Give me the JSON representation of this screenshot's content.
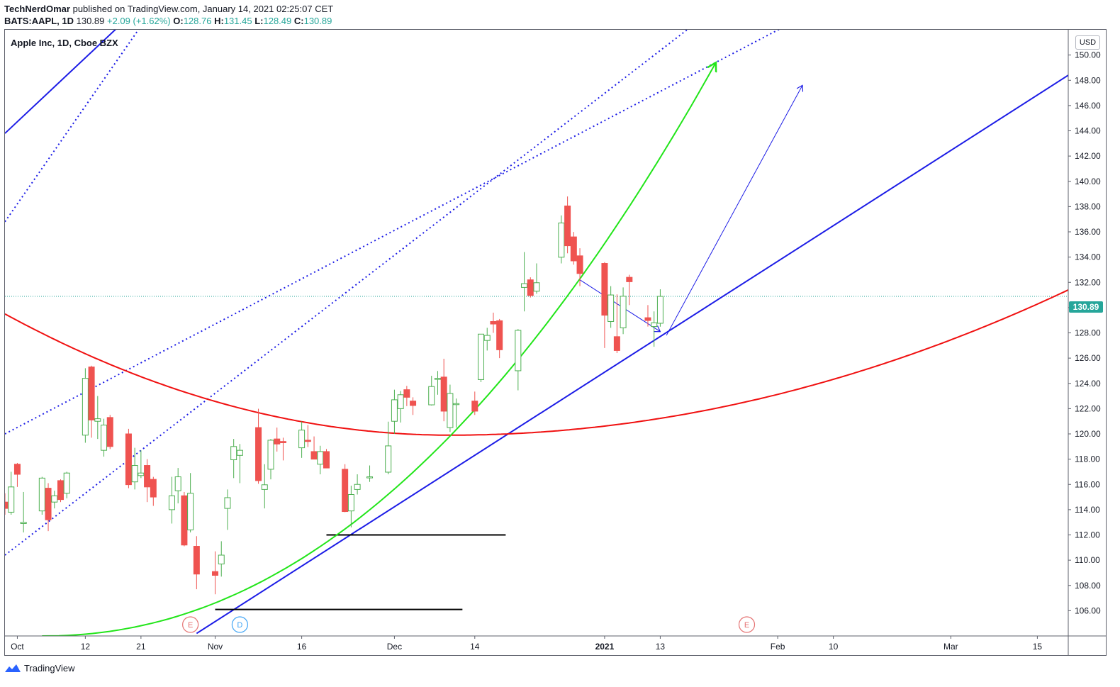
{
  "header": {
    "author": "TechNerdOmar",
    "published_text": "published on TradingView.com, January 14, 2021 02:25:07 CET",
    "symbol": "BATS:AAPL, 1D",
    "last": "130.89",
    "change": "+2.09 (+1.62%)",
    "o_label": "O:",
    "o_value": "128.76",
    "h_label": "H:",
    "h_value": "131.45",
    "l_label": "L:",
    "l_value": "128.49",
    "c_label": "C:",
    "c_value": "130.89"
  },
  "legend_title": "Apple Inc, 1D, Cboe BZX",
  "currency_button": "USD",
  "last_price_tag": "130.89",
  "footer": {
    "brand": "TradingView"
  },
  "colors": {
    "bull": "#26a69a",
    "bear": "#ef5350",
    "bull_fill": "#ffffff",
    "bull_outline": "#4caf50",
    "blue_line": "#1c1ce6",
    "red_curve": "#f01010",
    "green_curve": "#22e51a",
    "earnings": "#e57373",
    "dividend": "#42a5f5"
  },
  "chart_data": {
    "type": "candlestick",
    "title": "Apple Inc, 1D, Cboe BZX",
    "yaxis": {
      "ticks": [
        "106.00",
        "108.00",
        "110.00",
        "112.00",
        "114.00",
        "116.00",
        "118.00",
        "120.00",
        "122.00",
        "124.00",
        "126.00",
        "128.00",
        "130.00",
        "132.00",
        "134.00",
        "136.00",
        "138.00",
        "140.00",
        "142.00",
        "144.00",
        "146.00",
        "148.00",
        "150.00"
      ],
      "range": [
        104.0,
        152.0
      ]
    },
    "xaxis": {
      "ticks": [
        "Oct",
        "12",
        "21",
        "Nov",
        "16",
        "Dec",
        "14",
        "2021",
        "13",
        "Feb",
        "10",
        "Mar",
        "15"
      ],
      "bold_ticks": [
        "2021"
      ],
      "range": [
        "2020-09-29",
        "2021-03-20"
      ]
    },
    "candles": [
      {
        "t": "2020-09-29",
        "o": 114.6,
        "h": 115.3,
        "l": 113.6,
        "c": 114.1
      },
      {
        "t": "2020-09-30",
        "o": 113.8,
        "h": 117.0,
        "l": 113.6,
        "c": 115.8
      },
      {
        "t": "2020-10-01",
        "o": 117.6,
        "h": 117.7,
        "l": 115.8,
        "c": 116.8
      },
      {
        "t": "2020-10-02",
        "o": 112.9,
        "h": 115.4,
        "l": 112.2,
        "c": 113.0
      },
      {
        "t": "2020-10-05",
        "o": 113.9,
        "h": 116.6,
        "l": 113.6,
        "c": 116.5
      },
      {
        "t": "2020-10-06",
        "o": 115.7,
        "h": 116.1,
        "l": 112.3,
        "c": 113.2
      },
      {
        "t": "2020-10-07",
        "o": 114.6,
        "h": 115.5,
        "l": 114.1,
        "c": 115.1
      },
      {
        "t": "2020-10-08",
        "o": 116.3,
        "h": 116.4,
        "l": 114.6,
        "c": 114.8
      },
      {
        "t": "2020-10-09",
        "o": 115.3,
        "h": 117.0,
        "l": 114.9,
        "c": 116.9
      },
      {
        "t": "2020-10-12",
        "o": 119.9,
        "h": 125.2,
        "l": 119.3,
        "c": 124.4
      },
      {
        "t": "2020-10-13",
        "o": 125.3,
        "h": 125.4,
        "l": 119.7,
        "c": 121.1
      },
      {
        "t": "2020-10-14",
        "o": 121.0,
        "h": 123.0,
        "l": 119.6,
        "c": 121.2
      },
      {
        "t": "2020-10-15",
        "o": 118.7,
        "h": 121.2,
        "l": 118.2,
        "c": 120.7
      },
      {
        "t": "2020-10-16",
        "o": 121.3,
        "h": 121.5,
        "l": 118.8,
        "c": 119.0
      },
      {
        "t": "2020-10-19",
        "o": 120.0,
        "h": 120.4,
        "l": 115.7,
        "c": 115.98
      },
      {
        "t": "2020-10-20",
        "o": 116.2,
        "h": 118.9,
        "l": 115.6,
        "c": 117.5
      },
      {
        "t": "2020-10-21",
        "o": 116.7,
        "h": 118.7,
        "l": 116.5,
        "c": 116.9
      },
      {
        "t": "2020-10-22",
        "o": 117.5,
        "h": 118.0,
        "l": 114.6,
        "c": 115.8
      },
      {
        "t": "2020-10-23",
        "o": 116.4,
        "h": 116.6,
        "l": 114.3,
        "c": 115.0
      },
      {
        "t": "2020-10-26",
        "o": 114.0,
        "h": 116.6,
        "l": 112.9,
        "c": 115.1
      },
      {
        "t": "2020-10-27",
        "o": 115.5,
        "h": 117.3,
        "l": 114.5,
        "c": 116.6
      },
      {
        "t": "2020-10-28",
        "o": 115.1,
        "h": 115.4,
        "l": 111.1,
        "c": 111.2
      },
      {
        "t": "2020-10-29",
        "o": 112.4,
        "h": 116.9,
        "l": 112.2,
        "c": 115.3
      },
      {
        "t": "2020-10-30",
        "o": 111.1,
        "h": 111.9,
        "l": 107.7,
        "c": 108.9
      },
      {
        "t": "2020-11-02",
        "o": 109.1,
        "h": 110.7,
        "l": 107.3,
        "c": 108.8
      },
      {
        "t": "2020-11-03",
        "o": 109.7,
        "h": 111.5,
        "l": 108.7,
        "c": 110.4
      },
      {
        "t": "2020-11-04",
        "o": 114.1,
        "h": 115.6,
        "l": 112.4,
        "c": 114.95
      },
      {
        "t": "2020-11-05",
        "o": 117.95,
        "h": 119.6,
        "l": 116.5,
        "c": 119.0
      },
      {
        "t": "2020-11-06",
        "o": 118.3,
        "h": 119.2,
        "l": 116.1,
        "c": 118.7
      },
      {
        "t": "2020-11-09",
        "o": 120.5,
        "h": 121.99,
        "l": 116.05,
        "c": 116.3
      },
      {
        "t": "2020-11-10",
        "o": 115.6,
        "h": 117.6,
        "l": 114.1,
        "c": 115.97
      },
      {
        "t": "2020-11-11",
        "o": 117.2,
        "h": 119.6,
        "l": 116.4,
        "c": 119.5
      },
      {
        "t": "2020-11-12",
        "o": 119.6,
        "h": 120.5,
        "l": 118.6,
        "c": 119.2
      },
      {
        "t": "2020-11-13",
        "o": 119.4,
        "h": 119.7,
        "l": 117.9,
        "c": 119.3
      },
      {
        "t": "2020-11-16",
        "o": 118.9,
        "h": 120.99,
        "l": 118.1,
        "c": 120.3
      },
      {
        "t": "2020-11-17",
        "o": 119.5,
        "h": 120.7,
        "l": 118.96,
        "c": 119.4
      },
      {
        "t": "2020-11-18",
        "o": 118.6,
        "h": 119.8,
        "l": 118.0,
        "c": 118.0
      },
      {
        "t": "2020-11-19",
        "o": 117.6,
        "h": 119.06,
        "l": 116.8,
        "c": 118.6
      },
      {
        "t": "2020-11-20",
        "o": 118.6,
        "h": 118.8,
        "l": 117.3,
        "c": 117.3
      },
      {
        "t": "2020-11-23",
        "o": 117.2,
        "h": 117.6,
        "l": 113.8,
        "c": 113.85
      },
      {
        "t": "2020-11-24",
        "o": 113.9,
        "h": 115.9,
        "l": 112.6,
        "c": 115.2
      },
      {
        "t": "2020-11-25",
        "o": 115.6,
        "h": 116.8,
        "l": 115.2,
        "c": 116.0
      },
      {
        "t": "2020-11-27",
        "o": 116.6,
        "h": 117.5,
        "l": 116.2,
        "c": 116.6
      },
      {
        "t": "2020-11-30",
        "o": 116.97,
        "h": 120.97,
        "l": 116.8,
        "c": 119.05
      },
      {
        "t": "2020-12-01",
        "o": 121.0,
        "h": 123.5,
        "l": 120.0,
        "c": 122.7
      },
      {
        "t": "2020-12-02",
        "o": 122.0,
        "h": 123.4,
        "l": 120.9,
        "c": 123.1
      },
      {
        "t": "2020-12-03",
        "o": 123.5,
        "h": 123.8,
        "l": 122.2,
        "c": 122.9
      },
      {
        "t": "2020-12-04",
        "o": 122.6,
        "h": 122.9,
        "l": 121.5,
        "c": 122.25
      },
      {
        "t": "2020-12-07",
        "o": 122.3,
        "h": 124.6,
        "l": 122.25,
        "c": 123.75
      },
      {
        "t": "2020-12-08",
        "o": 124.4,
        "h": 124.98,
        "l": 123.1,
        "c": 124.4
      },
      {
        "t": "2020-12-09",
        "o": 124.5,
        "h": 125.95,
        "l": 121.0,
        "c": 121.8
      },
      {
        "t": "2020-12-10",
        "o": 120.5,
        "h": 123.9,
        "l": 120.15,
        "c": 123.2
      },
      {
        "t": "2020-12-11",
        "o": 122.4,
        "h": 122.8,
        "l": 120.5,
        "c": 122.4
      },
      {
        "t": "2020-12-14",
        "o": 122.6,
        "h": 123.35,
        "l": 121.5,
        "c": 121.8
      },
      {
        "t": "2020-12-15",
        "o": 124.3,
        "h": 127.9,
        "l": 124.1,
        "c": 127.9
      },
      {
        "t": "2020-12-16",
        "o": 127.4,
        "h": 128.4,
        "l": 126.6,
        "c": 127.8
      },
      {
        "t": "2020-12-17",
        "o": 128.9,
        "h": 129.6,
        "l": 128.0,
        "c": 128.7
      },
      {
        "t": "2020-12-18",
        "o": 128.96,
        "h": 129.1,
        "l": 126.0,
        "c": 126.66
      },
      {
        "t": "2020-12-21",
        "o": 125.0,
        "h": 128.3,
        "l": 123.45,
        "c": 128.2
      },
      {
        "t": "2020-12-22",
        "o": 131.6,
        "h": 134.4,
        "l": 129.7,
        "c": 131.9
      },
      {
        "t": "2020-12-23",
        "o": 132.2,
        "h": 132.4,
        "l": 130.8,
        "c": 130.96
      },
      {
        "t": "2020-12-24",
        "o": 131.3,
        "h": 133.5,
        "l": 131.1,
        "c": 131.97
      },
      {
        "t": "2020-12-28",
        "o": 133.99,
        "h": 137.3,
        "l": 133.5,
        "c": 136.7
      },
      {
        "t": "2020-12-29",
        "o": 138.05,
        "h": 138.8,
        "l": 134.3,
        "c": 134.9
      },
      {
        "t": "2020-12-30",
        "o": 135.6,
        "h": 135.99,
        "l": 133.4,
        "c": 133.7
      },
      {
        "t": "2020-12-31",
        "o": 134.1,
        "h": 134.7,
        "l": 131.7,
        "c": 132.7
      },
      {
        "t": "2021-01-04",
        "o": 133.5,
        "h": 133.6,
        "l": 126.8,
        "c": 129.4
      },
      {
        "t": "2021-01-05",
        "o": 128.9,
        "h": 131.7,
        "l": 128.4,
        "c": 131.0
      },
      {
        "t": "2021-01-06",
        "o": 127.7,
        "h": 131.05,
        "l": 126.4,
        "c": 126.6
      },
      {
        "t": "2021-01-07",
        "o": 128.4,
        "h": 131.6,
        "l": 127.9,
        "c": 130.9
      },
      {
        "t": "2021-01-08",
        "o": 132.4,
        "h": 132.6,
        "l": 130.2,
        "c": 132.05
      },
      {
        "t": "2021-01-11",
        "o": 129.2,
        "h": 130.2,
        "l": 128.5,
        "c": 128.98
      },
      {
        "t": "2021-01-12",
        "o": 128.5,
        "h": 129.7,
        "l": 126.9,
        "c": 128.8
      },
      {
        "t": "2021-01-13",
        "o": 128.76,
        "h": 131.45,
        "l": 128.49,
        "c": 130.89
      }
    ],
    "last_price": 130.89,
    "events": [
      {
        "type": "earnings",
        "label": "E",
        "t": "2020-10-29"
      },
      {
        "type": "dividend",
        "label": "D",
        "t": "2020-11-06"
      },
      {
        "type": "earnings",
        "label": "E",
        "t": "2021-01-27"
      }
    ],
    "drawings": {
      "upper_channel_line": {
        "style": "solid",
        "color": "blue",
        "from": {
          "t": "2020-09-29",
          "y": 143.8
        },
        "to": {
          "t": "2020-10-19",
          "y": 153.0
        }
      },
      "lower_trendline": {
        "style": "solid",
        "color": "blue",
        "from": {
          "t": "2020-10-30",
          "y": 104.2
        },
        "to": {
          "t": "2021-03-20",
          "y": 148.4
        }
      },
      "channel_dotted_1": {
        "style": "dotted",
        "color": "blue",
        "from": {
          "t": "2020-09-29",
          "y": 110.4
        },
        "to": {
          "t": "2021-01-20",
          "y": 153.0
        }
      },
      "channel_dotted_2": {
        "style": "dotted",
        "color": "blue",
        "from": {
          "t": "2020-09-29",
          "y": 120.0
        },
        "to": {
          "t": "2021-02-05",
          "y": 153.0
        }
      },
      "channel_dotted_3": {
        "style": "dotted",
        "color": "blue",
        "from": {
          "t": "2020-09-29",
          "y": 136.8
        },
        "to": {
          "t": "2020-10-22",
          "y": 153.0
        }
      },
      "support_line_1": {
        "color": "black",
        "y": 112.0,
        "from": "2020-11-20",
        "to": "2020-12-19"
      },
      "support_line_2": {
        "color": "black",
        "y": 106.1,
        "from": "2020-11-02",
        "to": "2020-12-12"
      },
      "red_arc": {
        "color": "red",
        "from": {
          "t": "2020-09-29",
          "y": 129.5
        },
        "bottom": {
          "t": "2020-12-10",
          "y": 119.9
        },
        "to": {
          "t": "2021-03-20",
          "y": 131.4
        }
      },
      "green_parabola": {
        "color": "green",
        "from": {
          "t": "2020-10-05",
          "y": 104.0
        },
        "to": {
          "t": "2021-01-22",
          "y": 149.4
        },
        "arrow": true
      },
      "projection_arrow": {
        "color": "blue",
        "from": {
          "t": "2021-01-14",
          "y": 127.8
        },
        "to": {
          "t": "2021-02-05",
          "y": 147.6
        }
      },
      "short_arrow": {
        "color": "blue",
        "from": {
          "t": "2020-12-31",
          "y": 132.2
        },
        "to": {
          "t": "2021-01-13",
          "y": 128.1
        }
      }
    }
  }
}
